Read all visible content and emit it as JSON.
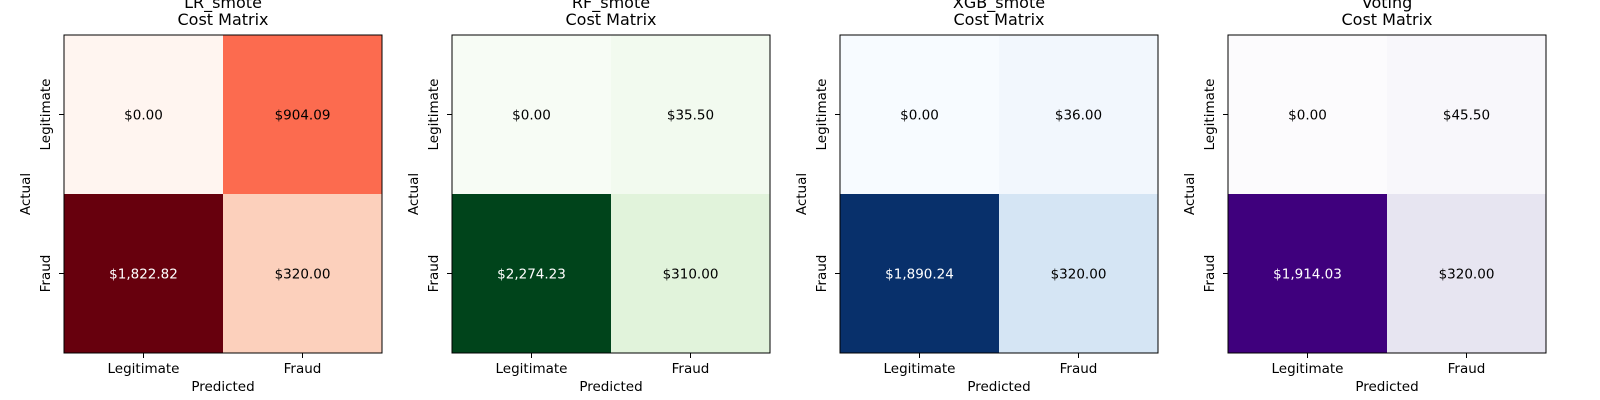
{
  "chart_data": [
    {
      "type": "heatmap",
      "title": "LR_smote\nCost Matrix",
      "xlabel": "Predicted",
      "ylabel": "Actual",
      "x_categories": [
        "Legitimate",
        "Fraud"
      ],
      "y_categories": [
        "Legitimate",
        "Fraud"
      ],
      "values": [
        [
          0.0,
          904.09
        ],
        [
          1822.82,
          320.0
        ]
      ],
      "cell_labels": [
        [
          "$0.00",
          "$904.09"
        ],
        [
          "$1,822.82",
          "$320.00"
        ]
      ],
      "colormap": "Reds",
      "cell_colors": [
        [
          "#fff5f0",
          "#fc6b4f"
        ],
        [
          "#67000d",
          "#fcd0bc"
        ]
      ],
      "grid": false
    },
    {
      "type": "heatmap",
      "title": "RF_smote\nCost Matrix",
      "xlabel": "Predicted",
      "ylabel": "Actual",
      "x_categories": [
        "Legitimate",
        "Fraud"
      ],
      "y_categories": [
        "Legitimate",
        "Fraud"
      ],
      "values": [
        [
          0.0,
          35.5
        ],
        [
          2274.23,
          310.0
        ]
      ],
      "cell_labels": [
        [
          "$0.00",
          "$35.50"
        ],
        [
          "$2,274.23",
          "$310.00"
        ]
      ],
      "colormap": "Greens",
      "cell_colors": [
        [
          "#f7fcf5",
          "#f2faef"
        ],
        [
          "#00441b",
          "#e1f3db"
        ]
      ],
      "grid": false
    },
    {
      "type": "heatmap",
      "title": "XGB_smote\nCost Matrix",
      "xlabel": "Predicted",
      "ylabel": "Actual",
      "x_categories": [
        "Legitimate",
        "Fraud"
      ],
      "y_categories": [
        "Legitimate",
        "Fraud"
      ],
      "values": [
        [
          0.0,
          36.0
        ],
        [
          1890.24,
          320.0
        ]
      ],
      "cell_labels": [
        [
          "$0.00",
          "$36.00"
        ],
        [
          "$1,890.24",
          "$320.00"
        ]
      ],
      "colormap": "Blues",
      "cell_colors": [
        [
          "#f7fbff",
          "#f2f7fd"
        ],
        [
          "#08306b",
          "#d5e5f4"
        ]
      ],
      "grid": false
    },
    {
      "type": "heatmap",
      "title": "Voting\nCost Matrix",
      "xlabel": "Predicted",
      "ylabel": "Actual",
      "x_categories": [
        "Legitimate",
        "Fraud"
      ],
      "y_categories": [
        "Legitimate",
        "Fraud"
      ],
      "values": [
        [
          0.0,
          45.5
        ],
        [
          1914.03,
          320.0
        ]
      ],
      "cell_labels": [
        [
          "$0.00",
          "$45.50"
        ],
        [
          "$1,914.03",
          "$320.00"
        ]
      ],
      "colormap": "Purples",
      "cell_colors": [
        [
          "#fcfbfd",
          "#f8f7fb"
        ],
        [
          "#3f007d",
          "#e7e5f1"
        ]
      ],
      "grid": false
    }
  ]
}
